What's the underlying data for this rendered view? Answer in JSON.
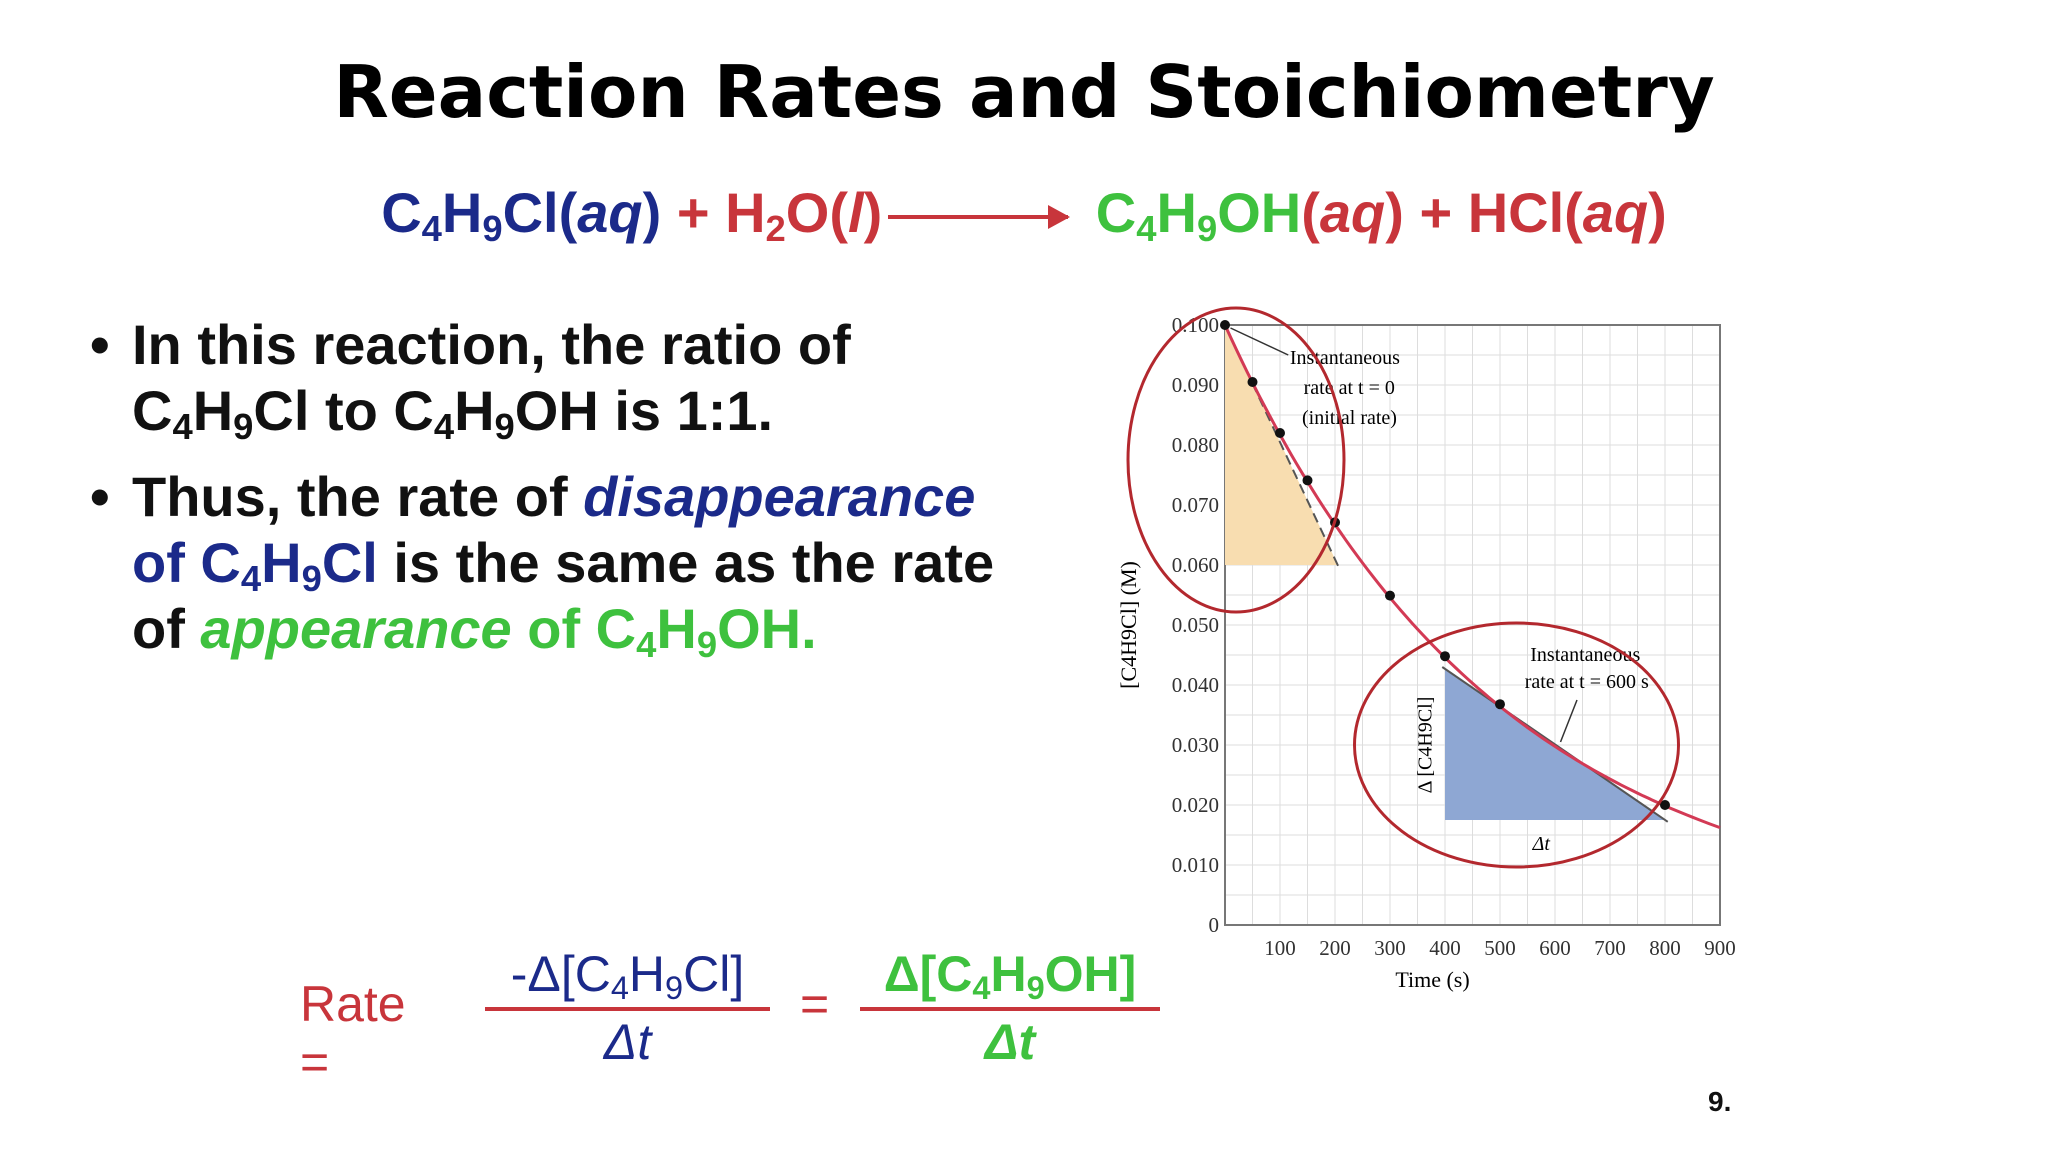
{
  "title": "Reaction Rates and Stoichiometry",
  "equation": {
    "reactant1": "C",
    "reactant1_sub1": "4",
    "reactant1_mid": "H",
    "reactant1_sub2": "9",
    "reactant1_end": "Cl(",
    "reactant1_state": "aq",
    "reactant1_close": ")",
    "plus1": "+",
    "reactant2": "H",
    "reactant2_sub": "2",
    "reactant2_mid": "O(",
    "reactant2_state": "l",
    "reactant2_close": ")",
    "product1": "C",
    "product1_sub1": "4",
    "product1_mid": "H",
    "product1_sub2": "9",
    "product1_end": "OH",
    "product1_open": "(",
    "product1_state": "aq",
    "product1_close": ")",
    "plus2": "+",
    "product2": "HCl(",
    "product2_state": "aq",
    "product2_close": ")"
  },
  "bullets": [
    {
      "line1": "In this reaction, the ratio of",
      "line2a": "C",
      "line2b": "4",
      "line2c": "H",
      "line2d": "9",
      "line2e": "Cl to C",
      "line2f": "4",
      "line2g": "H",
      "line2h": "9",
      "line2i": "OH is 1:1."
    },
    {
      "p1": "Thus, the rate of ",
      "p2": "disappearance",
      "p3": "of C",
      "p4": "4",
      "p5": "H",
      "p6": "9",
      "p7": "Cl",
      "p8": " is the same as the rate",
      "p9": "of ",
      "p10": "appearance",
      "p11": " of C",
      "p12": "4",
      "p13": "H",
      "p14": "9",
      "p15": "OH."
    }
  ],
  "formula": {
    "label": "Rate =",
    "num1a": "-Δ[C",
    "num1b": "4",
    "num1c": "H",
    "num1d": "9",
    "num1e": "Cl]",
    "den1": "Δt",
    "equals": "=",
    "num2a": "Δ[C",
    "num2b": "4",
    "num2c": "H",
    "num2d": "9",
    "num2e": "OH]",
    "den2": "Δt"
  },
  "slide_number": "9.",
  "colors": {
    "blue": "#1b2a8a",
    "red": "#c8353b",
    "green": "#3ec13e",
    "orange_fill": "#f8ddb0",
    "blue_fill": "#8ea7d3"
  },
  "chart_data": {
    "type": "line",
    "x": [
      0,
      50,
      100,
      150,
      200,
      300,
      400,
      500,
      800
    ],
    "y": [
      0.1,
      0.0905,
      0.082,
      0.0741,
      0.0671,
      0.0549,
      0.0448,
      0.0368,
      0.02
    ],
    "xlabel": "Time (s)",
    "ylabel": "[C4H9Cl] (M)",
    "xticks": [
      "100",
      "200",
      "300",
      "400",
      "500",
      "600",
      "700",
      "800",
      "900"
    ],
    "yticks": [
      "0",
      "0.010",
      "0.020",
      "0.030",
      "0.040",
      "0.050",
      "0.060",
      "0.070",
      "0.080",
      "0.090",
      "0.100"
    ],
    "xlim": [
      0,
      900
    ],
    "ylim": [
      0,
      0.1
    ],
    "grid": true,
    "annotations": [
      {
        "line1": "Instantaneous",
        "line2": "rate at t = 0",
        "line3": "(initial rate)"
      },
      {
        "line1": "Instantaneous",
        "line2": "rate at t = 600 s"
      }
    ],
    "delta_y_label": "Δ [C4H9Cl]",
    "delta_x_label": "Δt"
  }
}
